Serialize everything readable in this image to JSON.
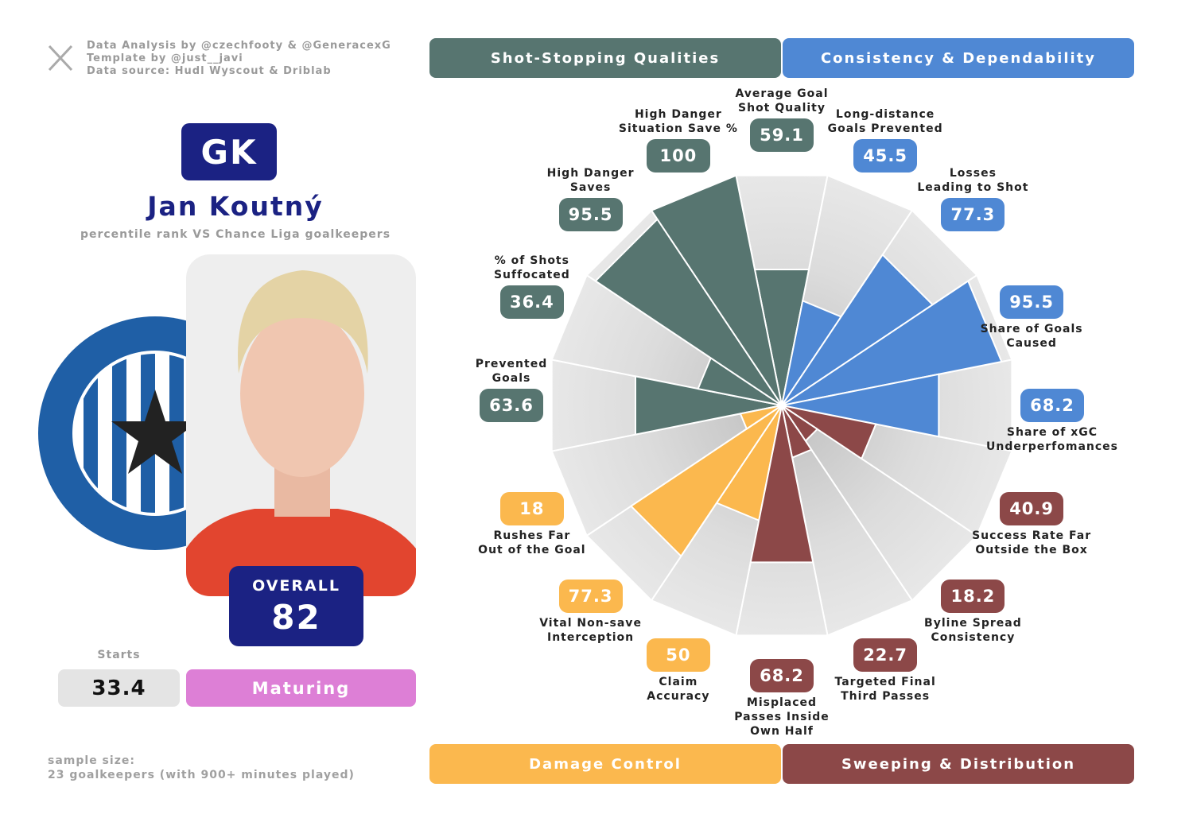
{
  "credits": [
    "Data Analysis by @czechfooty & @GeneracexG",
    "Template by @just__javi",
    "Data source: Hudl Wyscout & Driblab"
  ],
  "position": "GK",
  "player": "Jan Koutný",
  "subtitle": "percentile rank VS Chance Liga goalkeepers",
  "overall_label": "OVERALL",
  "overall": "82",
  "starts_label": "Starts",
  "starts": "33.4",
  "status": "Maturing",
  "sample_size": [
    "sample size:",
    "23 goalkeepers (with 900+ minutes played)"
  ],
  "chart_data": {
    "type": "pizza",
    "ylim": [
      0,
      100
    ],
    "categories": [
      "Average Goal\nShot Quality",
      "Long-distance\nGoals Prevented",
      "Losses\nLeading to Shot",
      "Share of Goals\nCaused",
      "Share of xGC\nUnderperfomances",
      "Success Rate Far\nOutside the Box",
      "Byline Spread\nConsistency",
      "Targeted Final\nThird Passes",
      "Misplaced\nPasses Inside\nOwn Half",
      "Claim\nAccuracy",
      "Vital Non-save\nInterception",
      "Rushes Far\nOut of the Goal",
      "Prevented\nGoals",
      "% of Shots\nSuffocated",
      "High Danger\nSaves",
      "High Danger\nSituation Save %"
    ],
    "series": [
      {
        "name": "Shot-Stopping Qualities",
        "color": "#577570",
        "values": [
          59.1,
          null,
          null,
          null,
          null,
          null,
          null,
          null,
          null,
          null,
          null,
          null,
          63.6,
          36.4,
          95.5,
          100
        ]
      },
      {
        "name": "Consistency & Dependability",
        "color": "#4f88d4",
        "values": [
          null,
          45.5,
          77.3,
          95.5,
          68.2,
          null,
          null,
          null,
          null,
          null,
          null,
          null,
          null,
          null,
          null,
          null
        ]
      },
      {
        "name": "Damage Control",
        "color": "#fbb84e",
        "values": [
          null,
          null,
          null,
          null,
          null,
          null,
          null,
          null,
          null,
          50,
          77.3,
          18,
          null,
          null,
          null,
          null
        ]
      },
      {
        "name": "Sweeping & Distribution",
        "color": "#8c4848",
        "values": [
          null,
          null,
          null,
          null,
          null,
          40.9,
          18.2,
          22.7,
          68.2,
          null,
          null,
          null,
          null,
          null,
          null,
          null
        ]
      }
    ]
  }
}
